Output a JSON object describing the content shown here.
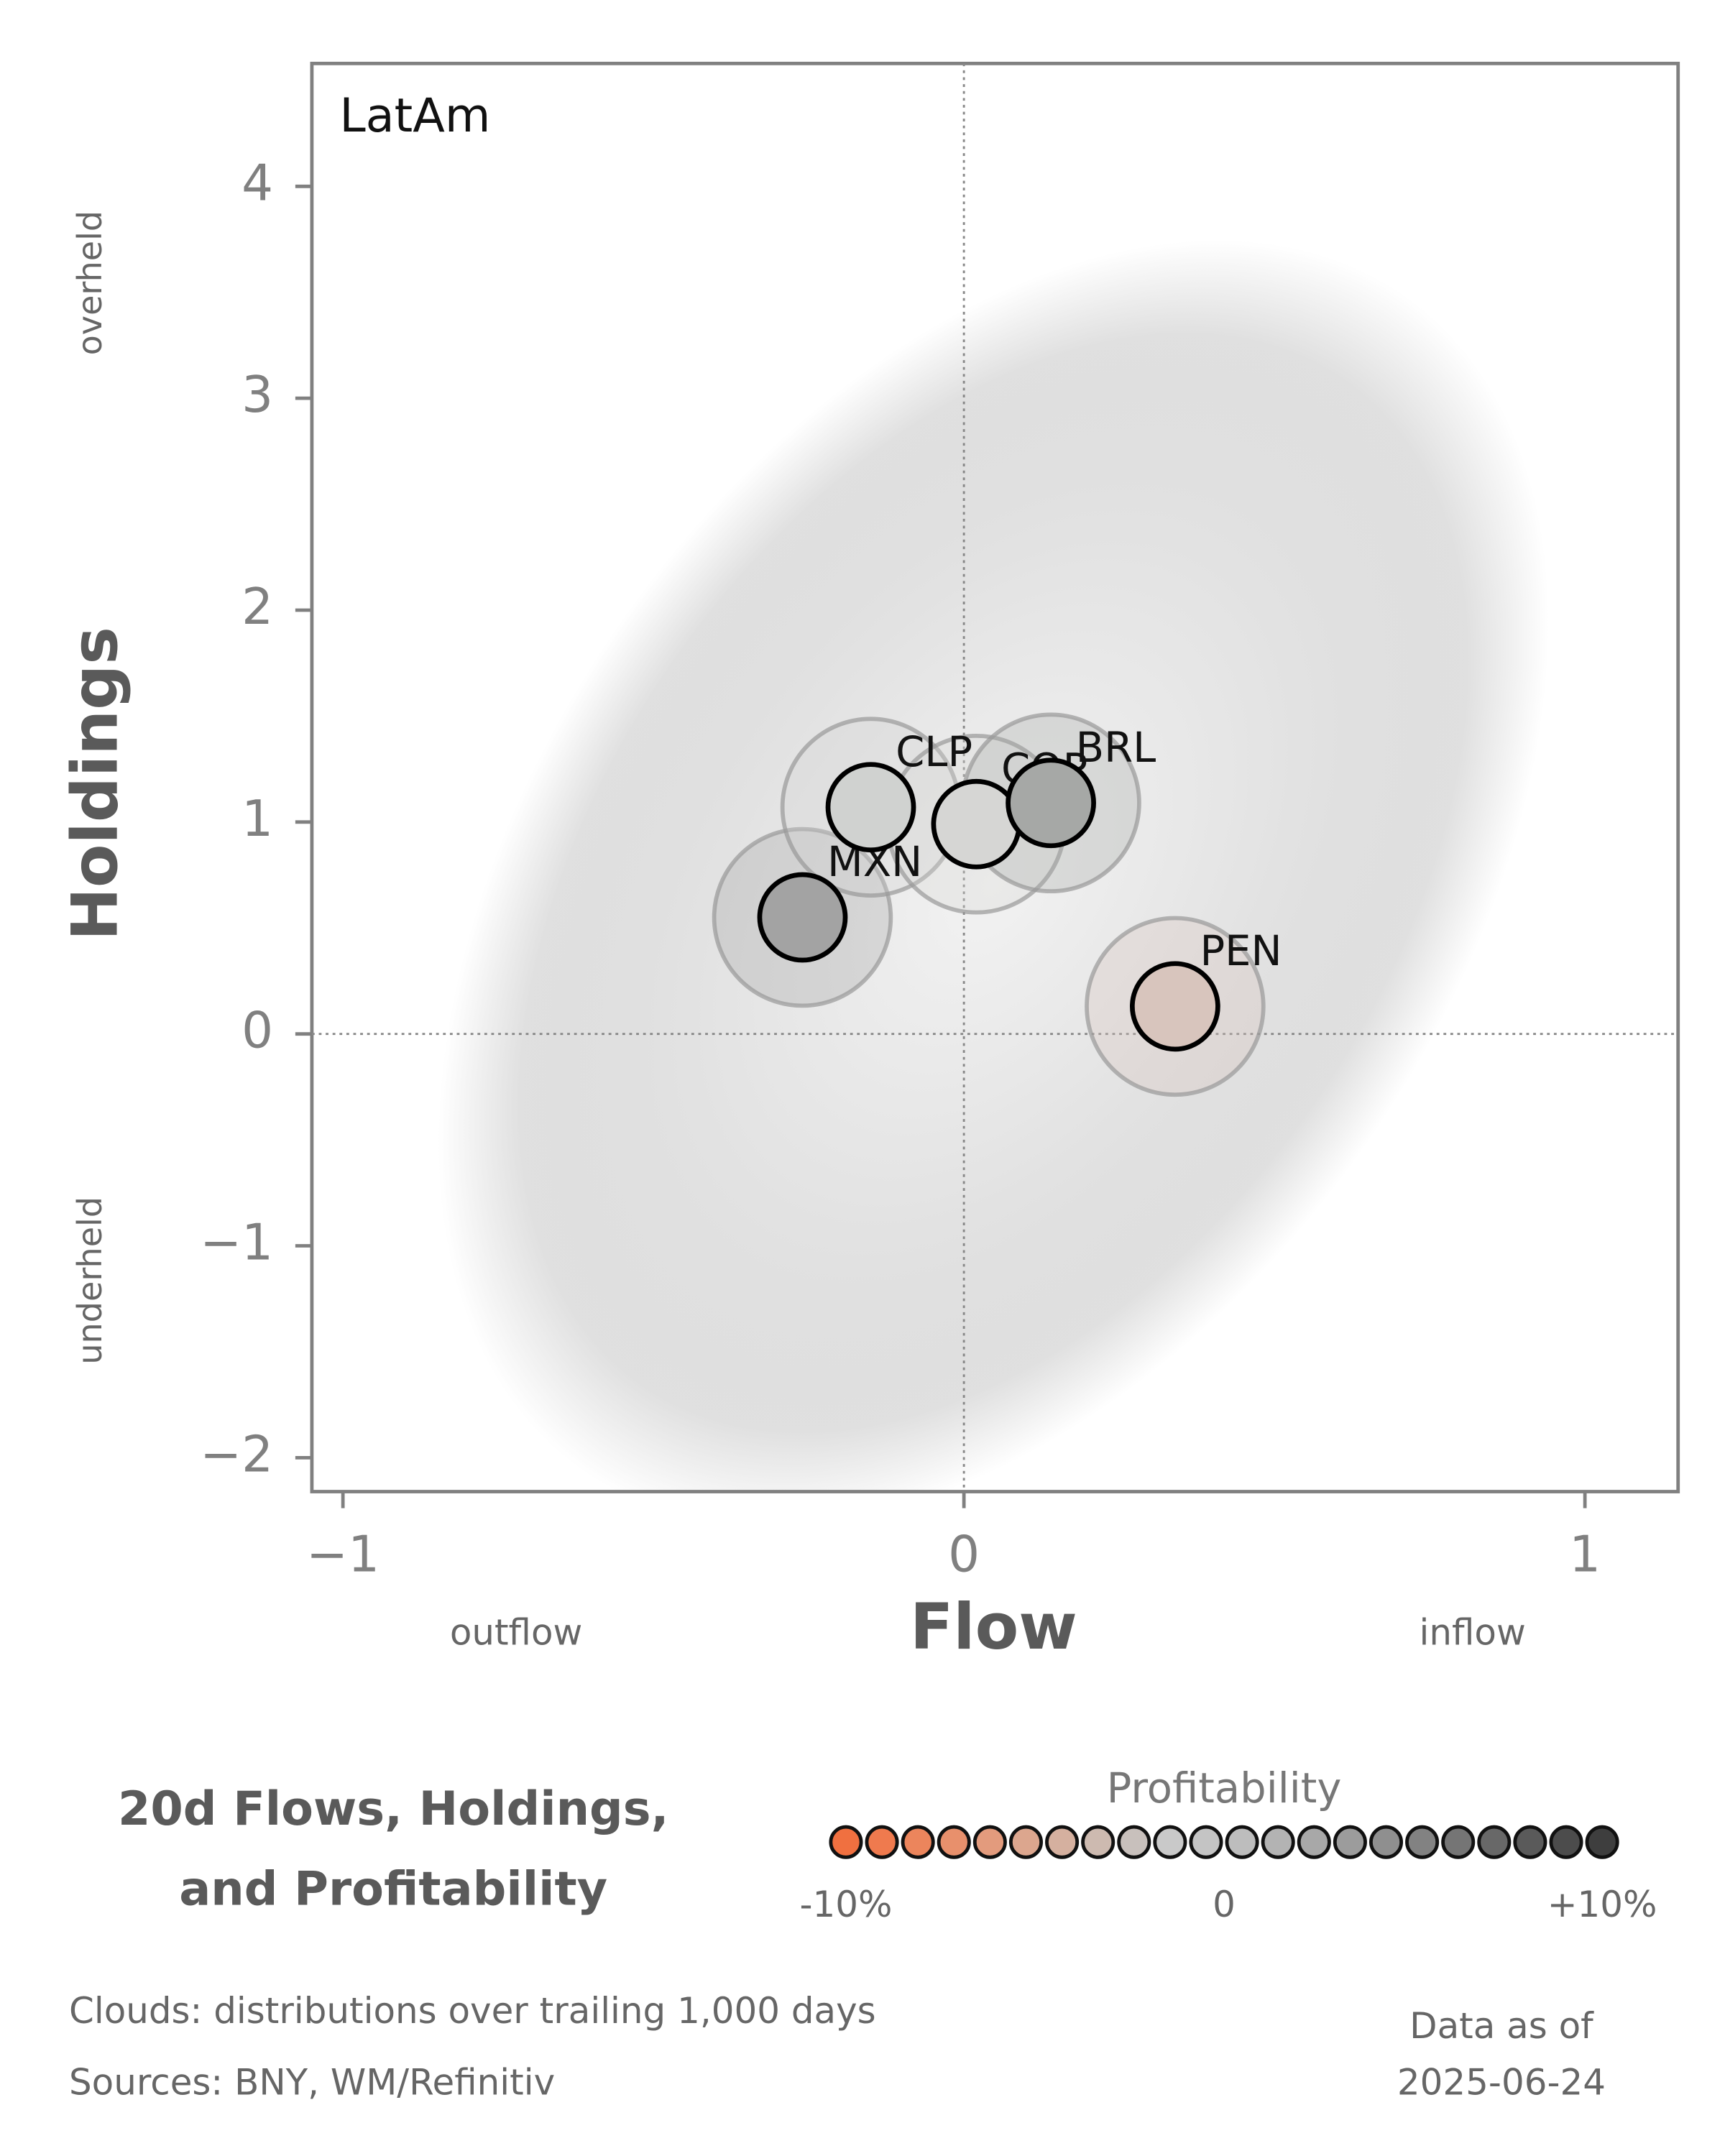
{
  "chart_data": {
    "type": "scatter",
    "panel_label": "LatAm",
    "xlabel": "Flow",
    "ylabel": "Holdings",
    "x_low_label": "outflow",
    "x_high_label": "inflow",
    "y_high_label": "overheld",
    "y_low_label": "underheld",
    "labels": [
      "MXN",
      "CLP",
      "COP",
      "BRL",
      "PEN"
    ],
    "x": [
      -0.26,
      -0.15,
      0.02,
      0.14,
      0.34
    ],
    "y": [
      0.55,
      1.07,
      0.99,
      1.09,
      0.13
    ],
    "colors": [
      "#a3a3a3",
      "#d0d2d0",
      "#d6d6d4",
      "#a6a8a6",
      "#d8c5bd"
    ],
    "xlim": [
      -1.05,
      1.15
    ],
    "ylim": [
      -2.16,
      4.58
    ],
    "xticks": [
      {
        "value": -1,
        "label": "−1"
      },
      0,
      1
    ],
    "yticks": [
      {
        "value": -2,
        "label": "−2"
      },
      {
        "value": -1,
        "label": "−1"
      },
      0,
      1,
      2,
      3,
      4
    ],
    "zero_lines": true,
    "title_lines": [
      "20d Flows, Holdings,",
      "and Profitability"
    ],
    "colorbar": {
      "title": "Profitability",
      "lim": [
        -10,
        10
      ],
      "colors": [
        "#f07040",
        "#ef7a4e",
        "#ec855c",
        "#e8906c",
        "#e39b7d",
        "#dca68e",
        "#d5b09f",
        "#cdbab0",
        "#c8c0bc",
        "#c9c9c9",
        "#c4c4c4",
        "#bdbdbd",
        "#b3b3b3",
        "#a8a8a8",
        "#9c9c9c",
        "#8f8f8f",
        "#828282",
        "#757575",
        "#686868",
        "#5a5a5a",
        "#4c4c4c",
        "#3e3e3e"
      ],
      "ticks": [
        {
          "value": -10,
          "label": "-10%"
        },
        0,
        {
          "value": 10,
          "label": "+10%"
        }
      ]
    },
    "notes": [
      "Clouds:  distributions over trailing 1,000 days",
      "Sources:  BNY, WM/Refinitiv"
    ],
    "asof_lines": [
      "Data as of",
      "2025-06-24"
    ]
  }
}
